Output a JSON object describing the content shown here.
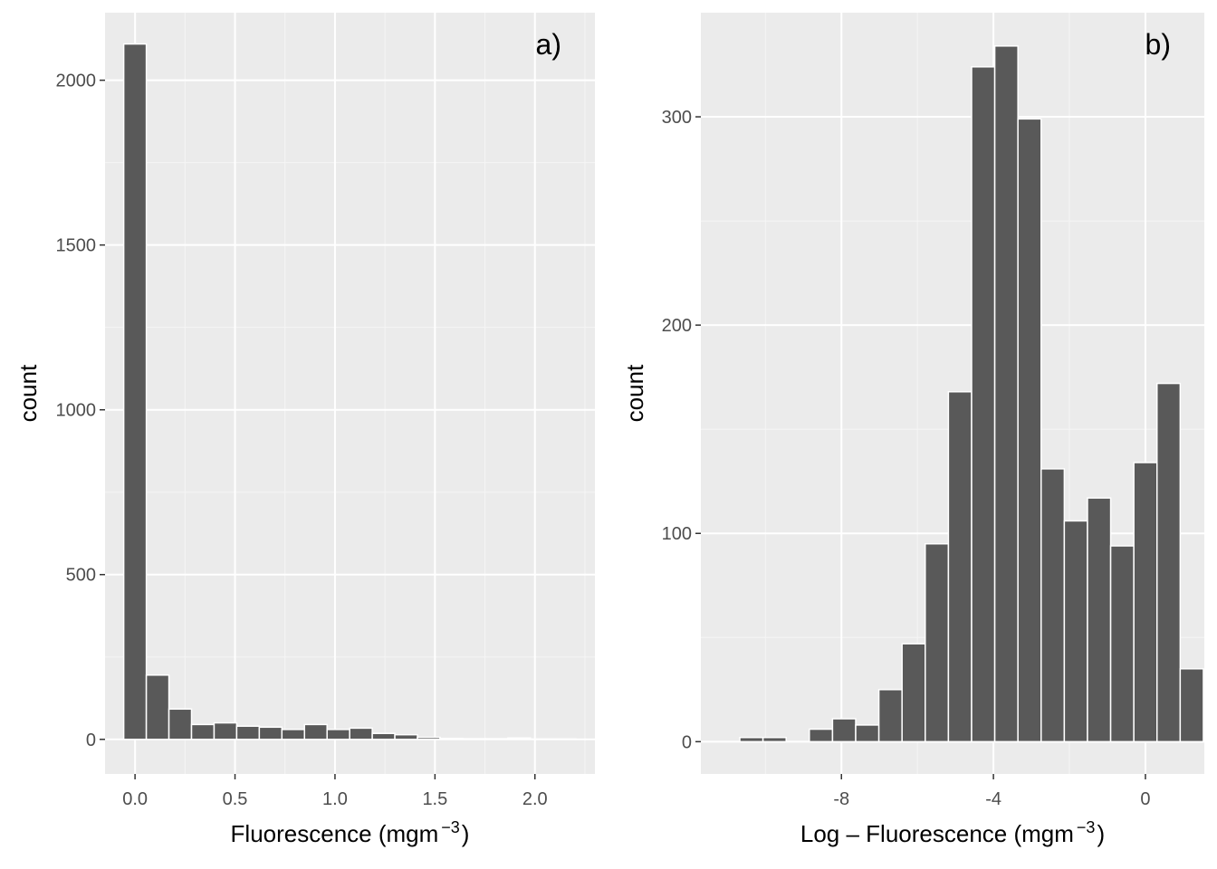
{
  "colors": {
    "panel_background": "#ebebeb",
    "grid_major": "#ffffff",
    "grid_minor": "#f5f5f5",
    "bar_fill": "#595959",
    "bar_outline": "#ffffff",
    "tick_text": "#4d4d4d"
  },
  "chart_data": [
    {
      "type": "bar",
      "panel_label": "a)",
      "xlabel_main": "Fluorescence (mgm",
      "xlabel_exponent": "−3",
      "xlabel_close": ")",
      "ylabel": "count",
      "xlim": [
        -0.15,
        2.3
      ],
      "ylim": [
        -105,
        2205
      ],
      "grid": true,
      "x_major_ticks": [
        0.0,
        0.5,
        1.0,
        1.5,
        2.0
      ],
      "x_tick_labels": [
        "0.0",
        "0.5",
        "1.0",
        "1.5",
        "2.0"
      ],
      "x_minor_ticks": [
        0.25,
        0.75,
        1.25,
        1.75,
        2.25
      ],
      "y_major_ticks": [
        0,
        500,
        1000,
        1500,
        2000
      ],
      "y_tick_labels": [
        "0",
        "500",
        "1000",
        "1500",
        "2000"
      ],
      "y_minor_ticks": [
        250,
        750,
        1250,
        1750
      ],
      "bin_width": 0.113,
      "bins": [
        {
          "x": 0.0,
          "count": 2110
        },
        {
          "x": 0.113,
          "count": 195
        },
        {
          "x": 0.226,
          "count": 92
        },
        {
          "x": 0.339,
          "count": 45
        },
        {
          "x": 0.452,
          "count": 50
        },
        {
          "x": 0.565,
          "count": 40
        },
        {
          "x": 0.678,
          "count": 37
        },
        {
          "x": 0.791,
          "count": 30
        },
        {
          "x": 0.904,
          "count": 45
        },
        {
          "x": 1.017,
          "count": 30
        },
        {
          "x": 1.13,
          "count": 34
        },
        {
          "x": 1.243,
          "count": 18
        },
        {
          "x": 1.356,
          "count": 14
        },
        {
          "x": 1.469,
          "count": 6
        },
        {
          "x": 1.582,
          "count": 3
        },
        {
          "x": 1.695,
          "count": 2
        },
        {
          "x": 1.808,
          "count": 2
        },
        {
          "x": 1.921,
          "count": 4
        },
        {
          "x": 2.034,
          "count": 1
        },
        {
          "x": 2.147,
          "count": 1
        }
      ]
    },
    {
      "type": "bar",
      "panel_label": "b)",
      "xlabel_main": "Log – Fluorescence (mgm",
      "xlabel_exponent": "−3",
      "xlabel_close": ")",
      "ylabel": "count",
      "xlim": [
        -11.7,
        1.55
      ],
      "ylim": [
        -15.5,
        350
      ],
      "grid": true,
      "x_major_ticks": [
        -8,
        -4,
        0
      ],
      "x_tick_labels": [
        "-8",
        "-4",
        "0"
      ],
      "x_minor_ticks": [
        -10,
        -6,
        -2
      ],
      "y_major_ticks": [
        0,
        100,
        200,
        300
      ],
      "y_tick_labels": [
        "0",
        "100",
        "200",
        "300"
      ],
      "y_minor_ticks": [
        50,
        150,
        250
      ],
      "bin_width": 0.61,
      "bins": [
        {
          "x": -10.37,
          "count": 2
        },
        {
          "x": -9.76,
          "count": 2
        },
        {
          "x": -9.15,
          "count": 0
        },
        {
          "x": -8.54,
          "count": 6
        },
        {
          "x": -7.93,
          "count": 11
        },
        {
          "x": -7.32,
          "count": 8
        },
        {
          "x": -6.71,
          "count": 25
        },
        {
          "x": -6.1,
          "count": 47
        },
        {
          "x": -5.49,
          "count": 95
        },
        {
          "x": -4.88,
          "count": 168
        },
        {
          "x": -4.27,
          "count": 324
        },
        {
          "x": -3.66,
          "count": 334
        },
        {
          "x": -3.05,
          "count": 299
        },
        {
          "x": -2.44,
          "count": 131
        },
        {
          "x": -1.83,
          "count": 106
        },
        {
          "x": -1.22,
          "count": 117
        },
        {
          "x": -0.61,
          "count": 94
        },
        {
          "x": 0.0,
          "count": 134
        },
        {
          "x": 0.61,
          "count": 172
        },
        {
          "x": 1.22,
          "count": 35
        }
      ]
    }
  ]
}
